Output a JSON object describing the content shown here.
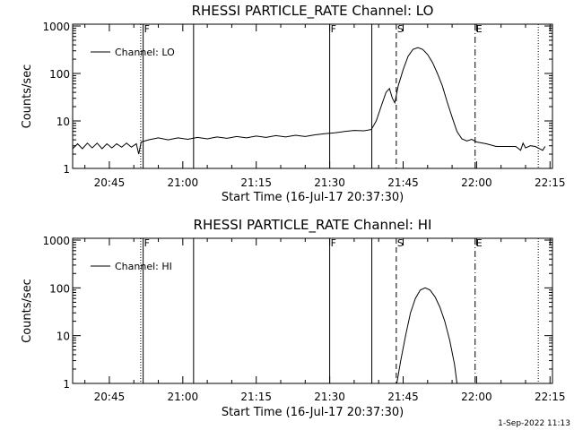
{
  "footer": {
    "timestamp": "1-Sep-2022 11:13"
  },
  "chart_data": [
    {
      "type": "line",
      "title": "RHESSI PARTICLE_RATE Channel: LO",
      "xlabel": "Start Time (16-Jul-17 20:37:30)",
      "ylabel": "Counts/sec",
      "y_scale": "log",
      "ylim": [
        1,
        1000
      ],
      "xlim_minutes": [
        20.6667,
        104.8333
      ],
      "x_ticks": [
        {
          "label": "20:45",
          "minute": 45
        },
        {
          "label": "21:00",
          "minute": 60
        },
        {
          "label": "21:15",
          "minute": 75
        },
        {
          "label": "21:30",
          "minute": 90
        },
        {
          "label": "21:45",
          "minute": 105
        },
        {
          "label": "22:00",
          "minute": 120
        },
        {
          "label": "22:15",
          "minute": 135
        }
      ],
      "y_ticks": [
        {
          "label": "1",
          "value": 1
        },
        {
          "label": "10",
          "value": 10
        },
        {
          "label": "100",
          "value": 100
        },
        {
          "label": "1000",
          "value": 1000
        }
      ],
      "legend": {
        "position": "top-left",
        "entries": [
          "Channel: LO"
        ]
      },
      "markers": [
        {
          "time": "20:51.4",
          "style": "dotted",
          "label": ""
        },
        {
          "time": "20:51.9",
          "style": "solid",
          "label": "F"
        },
        {
          "time": "21:02.2",
          "style": "solid",
          "label": ""
        },
        {
          "time": "21:30.0",
          "style": "solid",
          "label": "F"
        },
        {
          "time": "21:38.6",
          "style": "solid",
          "label": ""
        },
        {
          "time": "21:43.6",
          "style": "dashed",
          "label": "S"
        },
        {
          "time": "21:59.7",
          "style": "dashdot",
          "label": "E"
        },
        {
          "time": "22:12.6",
          "style": "dotted",
          "label": ""
        }
      ],
      "series": [
        {
          "name": "Channel: LO",
          "points": [
            [
              "20:37.5",
              2.6
            ],
            [
              "20:38.5",
              3.3
            ],
            [
              "20:39.5",
              2.6
            ],
            [
              "20:40.5",
              3.4
            ],
            [
              "20:41.5",
              2.7
            ],
            [
              "20:42.5",
              3.4
            ],
            [
              "20:43.5",
              2.6
            ],
            [
              "20:44.5",
              3.3
            ],
            [
              "20:45.5",
              2.7
            ],
            [
              "20:46.5",
              3.3
            ],
            [
              "20:47.5",
              2.8
            ],
            [
              "20:48.5",
              3.4
            ],
            [
              "20:49.5",
              2.8
            ],
            [
              "20:50.5",
              3.3
            ],
            [
              "20:51.0",
              2.0
            ],
            [
              "20:51.5",
              3.6
            ],
            [
              "20:53.0",
              4.0
            ],
            [
              "20:55.0",
              4.4
            ],
            [
              "20:57.0",
              4.0
            ],
            [
              "20:59.0",
              4.4
            ],
            [
              "21:01.0",
              4.1
            ],
            [
              "21:03.0",
              4.5
            ],
            [
              "21:05.0",
              4.2
            ],
            [
              "21:07.0",
              4.6
            ],
            [
              "21:09.0",
              4.3
            ],
            [
              "21:11.0",
              4.7
            ],
            [
              "21:13.0",
              4.4
            ],
            [
              "21:15.0",
              4.8
            ],
            [
              "21:17.0",
              4.5
            ],
            [
              "21:19.0",
              4.9
            ],
            [
              "21:21.0",
              4.6
            ],
            [
              "21:23.0",
              5.0
            ],
            [
              "21:25.0",
              4.7
            ],
            [
              "21:27.0",
              5.1
            ],
            [
              "21:29.0",
              5.4
            ],
            [
              "21:31.0",
              5.6
            ],
            [
              "21:33.0",
              6.0
            ],
            [
              "21:35.0",
              6.3
            ],
            [
              "21:37.0",
              6.2
            ],
            [
              "21:38.5",
              6.6
            ],
            [
              "21:39.5",
              10
            ],
            [
              "21:40.5",
              20
            ],
            [
              "21:41.5",
              40
            ],
            [
              "21:42.2",
              48
            ],
            [
              "21:42.8",
              30
            ],
            [
              "21:43.3",
              24
            ],
            [
              "21:44.0",
              55
            ],
            [
              "21:45.0",
              120
            ],
            [
              "21:46.0",
              230
            ],
            [
              "21:47.0",
              320
            ],
            [
              "21:48.0",
              350
            ],
            [
              "21:49.0",
              320
            ],
            [
              "21:50.0",
              250
            ],
            [
              "21:51.0",
              170
            ],
            [
              "21:52.0",
              100
            ],
            [
              "21:53.0",
              55
            ],
            [
              "21:54.0",
              25
            ],
            [
              "21:55.0",
              12
            ],
            [
              "21:56.0",
              6
            ],
            [
              "21:57.0",
              4.2
            ],
            [
              "21:58.0",
              3.8
            ],
            [
              "21:59.0",
              4.1
            ],
            [
              "22:00.0",
              3.6
            ],
            [
              "22:02.0",
              3.3
            ],
            [
              "22:04.0",
              2.9
            ],
            [
              "22:06.0",
              2.9
            ],
            [
              "22:08.0",
              2.9
            ],
            [
              "22:09.0",
              2.4
            ],
            [
              "22:09.5",
              3.4
            ],
            [
              "22:10.0",
              2.7
            ],
            [
              "22:11.0",
              3.0
            ],
            [
              "22:12.0",
              2.9
            ],
            [
              "22:13.5",
              2.4
            ],
            [
              "22:14.0",
              2.9
            ]
          ]
        }
      ]
    },
    {
      "type": "line",
      "title": "RHESSI PARTICLE_RATE Channel: HI",
      "xlabel": "Start Time (16-Jul-17 20:37:30)",
      "ylabel": "Counts/sec",
      "y_scale": "log",
      "ylim": [
        1,
        1000
      ],
      "x_ticks": [
        {
          "label": "20:45",
          "minute": 45
        },
        {
          "label": "21:00",
          "minute": 60
        },
        {
          "label": "21:15",
          "minute": 75
        },
        {
          "label": "21:30",
          "minute": 90
        },
        {
          "label": "21:45",
          "minute": 105
        },
        {
          "label": "22:00",
          "minute": 120
        },
        {
          "label": "22:15",
          "minute": 135
        }
      ],
      "y_ticks": [
        {
          "label": "1",
          "value": 1
        },
        {
          "label": "10",
          "value": 10
        },
        {
          "label": "100",
          "value": 100
        },
        {
          "label": "1000",
          "value": 1000
        }
      ],
      "legend": {
        "position": "top-left",
        "entries": [
          "Channel: HI"
        ]
      },
      "markers": [
        {
          "time": "20:51.4",
          "style": "dotted",
          "label": ""
        },
        {
          "time": "20:51.9",
          "style": "solid",
          "label": "F"
        },
        {
          "time": "21:02.2",
          "style": "solid",
          "label": ""
        },
        {
          "time": "21:30.0",
          "style": "solid",
          "label": "F"
        },
        {
          "time": "21:38.6",
          "style": "solid",
          "label": ""
        },
        {
          "time": "21:43.6",
          "style": "dashed",
          "label": "S"
        },
        {
          "time": "21:59.7",
          "style": "dashdot",
          "label": "E"
        },
        {
          "time": "22:12.6",
          "style": "dotted",
          "label": ""
        }
      ],
      "series": [
        {
          "name": "Channel: HI",
          "points": [
            [
              "21:43.7",
              1.0
            ],
            [
              "21:44.5",
              3.0
            ],
            [
              "21:45.5",
              10
            ],
            [
              "21:46.5",
              30
            ],
            [
              "21:47.5",
              60
            ],
            [
              "21:48.5",
              90
            ],
            [
              "21:49.5",
              100
            ],
            [
              "21:50.5",
              90
            ],
            [
              "21:51.5",
              65
            ],
            [
              "21:52.5",
              40
            ],
            [
              "21:53.5",
              20
            ],
            [
              "21:54.5",
              8
            ],
            [
              "21:55.5",
              2.5
            ],
            [
              "21:56.0",
              1.0
            ]
          ]
        }
      ]
    }
  ]
}
